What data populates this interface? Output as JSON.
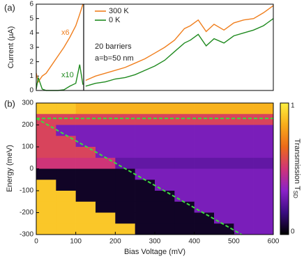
{
  "chart_data": [
    {
      "type": "line",
      "panel_label": "(a)",
      "ylabel": "Current (µA)",
      "xlim": [
        0,
        600
      ],
      "ylim": [
        0,
        6
      ],
      "yticks": [
        0,
        1,
        2,
        3,
        4,
        5,
        6
      ],
      "divider_x": 120,
      "x": [
        0,
        5,
        15,
        25,
        40,
        55,
        70,
        85,
        100,
        110,
        118,
        120,
        125,
        150,
        175,
        200,
        225,
        250,
        275,
        300,
        325,
        350,
        375,
        390,
        410,
        430,
        450,
        475,
        500,
        525,
        550,
        575,
        600
      ],
      "series": [
        {
          "name": "300 K",
          "color": "#f07f1e",
          "values": [
            1.2,
            0.6,
            1.0,
            1.2,
            1.8,
            2.4,
            3.0,
            3.7,
            4.5,
            5.3,
            6.0,
            null,
            0.7,
            1.0,
            1.2,
            1.4,
            1.6,
            1.9,
            2.2,
            2.6,
            3.0,
            3.5,
            4.3,
            4.5,
            4.9,
            4.1,
            4.6,
            4.2,
            4.7,
            4.9,
            5.0,
            5.4,
            5.9
          ]
        },
        {
          "name": "0 K",
          "color": "#1f8a1f",
          "values": [
            0.1,
            0.9,
            0.1,
            0.0,
            0.0,
            0.0,
            0.05,
            0.3,
            0.5,
            1.8,
            0.4,
            null,
            0.3,
            0.5,
            0.6,
            0.8,
            0.9,
            1.1,
            1.4,
            1.7,
            2.1,
            2.7,
            3.3,
            3.5,
            3.9,
            3.1,
            3.6,
            3.3,
            3.8,
            4.0,
            4.2,
            4.5,
            5.0
          ]
        }
      ],
      "annotations": [
        "x6",
        "x10",
        "20 barriers",
        "a=b=50 nm"
      ]
    },
    {
      "type": "heatmap",
      "panel_label": "(b)",
      "xlabel": "Bias Voltage (mV)",
      "ylabel": "Energy (meV)",
      "xlim": [
        0,
        600
      ],
      "ylim": [
        -300,
        300
      ],
      "xticks": [
        0,
        100,
        200,
        300,
        400,
        500,
        600
      ],
      "yticks": [
        -300,
        -200,
        -100,
        0,
        100,
        200,
        300
      ],
      "x_centers": [
        25,
        75,
        125,
        175,
        225,
        275,
        325,
        375,
        425,
        475,
        525,
        575
      ],
      "y_centers": [
        275,
        225,
        175,
        125,
        75,
        25,
        -25,
        -75,
        -125,
        -175,
        -225,
        -275
      ],
      "z": [
        [
          0.9,
          0.9,
          0.85,
          0.85,
          0.85,
          0.85,
          0.85,
          0.85,
          0.85,
          0.85,
          0.85,
          0.85
        ],
        [
          0.55,
          0.55,
          0.55,
          0.55,
          0.55,
          0.55,
          0.55,
          0.55,
          0.55,
          0.55,
          0.55,
          0.55
        ],
        [
          0.55,
          0.3,
          0.3,
          0.3,
          0.3,
          0.3,
          0.3,
          0.3,
          0.3,
          0.3,
          0.3,
          0.3
        ],
        [
          0.55,
          0.55,
          0.3,
          0.3,
          0.3,
          0.3,
          0.3,
          0.3,
          0.3,
          0.3,
          0.3,
          0.3
        ],
        [
          0.55,
          0.55,
          0.55,
          0.3,
          0.3,
          0.3,
          0.3,
          0.3,
          0.3,
          0.3,
          0.3,
          0.3
        ],
        [
          0.5,
          0.5,
          0.5,
          0.5,
          0.25,
          0.25,
          0.25,
          0.25,
          0.25,
          0.25,
          0.25,
          0.25
        ],
        [
          0.05,
          0.05,
          0.05,
          0.05,
          0.05,
          0.3,
          0.3,
          0.3,
          0.3,
          0.3,
          0.3,
          0.3
        ],
        [
          0.9,
          0.05,
          0.05,
          0.05,
          0.05,
          0.05,
          0.3,
          0.3,
          0.3,
          0.3,
          0.3,
          0.3
        ],
        [
          0.9,
          0.9,
          0.05,
          0.05,
          0.05,
          0.05,
          0.05,
          0.3,
          0.3,
          0.3,
          0.3,
          0.3
        ],
        [
          0.9,
          0.9,
          0.9,
          0.05,
          0.05,
          0.05,
          0.05,
          0.05,
          0.3,
          0.3,
          0.3,
          0.3
        ],
        [
          0.9,
          0.9,
          0.9,
          0.9,
          0.05,
          0.05,
          0.05,
          0.05,
          0.05,
          0.3,
          0.3,
          0.3
        ],
        [
          0.9,
          0.9,
          0.9,
          0.9,
          0.9,
          0.05,
          0.05,
          0.05,
          0.05,
          0.05,
          0.3,
          0.3
        ]
      ],
      "zlim": [
        0,
        1
      ],
      "zticks": [
        0,
        1
      ],
      "colormap": [
        "#000000",
        "#3a0c80",
        "#8a22c8",
        "#cf3478",
        "#ec6a1a",
        "#f8ac1a",
        "#fdf040"
      ],
      "colorbar_label": "Transmission T",
      "colorbar_label_sub": "SD",
      "lines": [
        {
          "color": "#3ddc3d",
          "x": [
            0,
            600
          ],
          "values": [
            230,
            230
          ]
        },
        {
          "color": "#3ddc3d",
          "x": [
            0,
            520
          ],
          "values": [
            230,
            -300
          ]
        }
      ]
    }
  ]
}
